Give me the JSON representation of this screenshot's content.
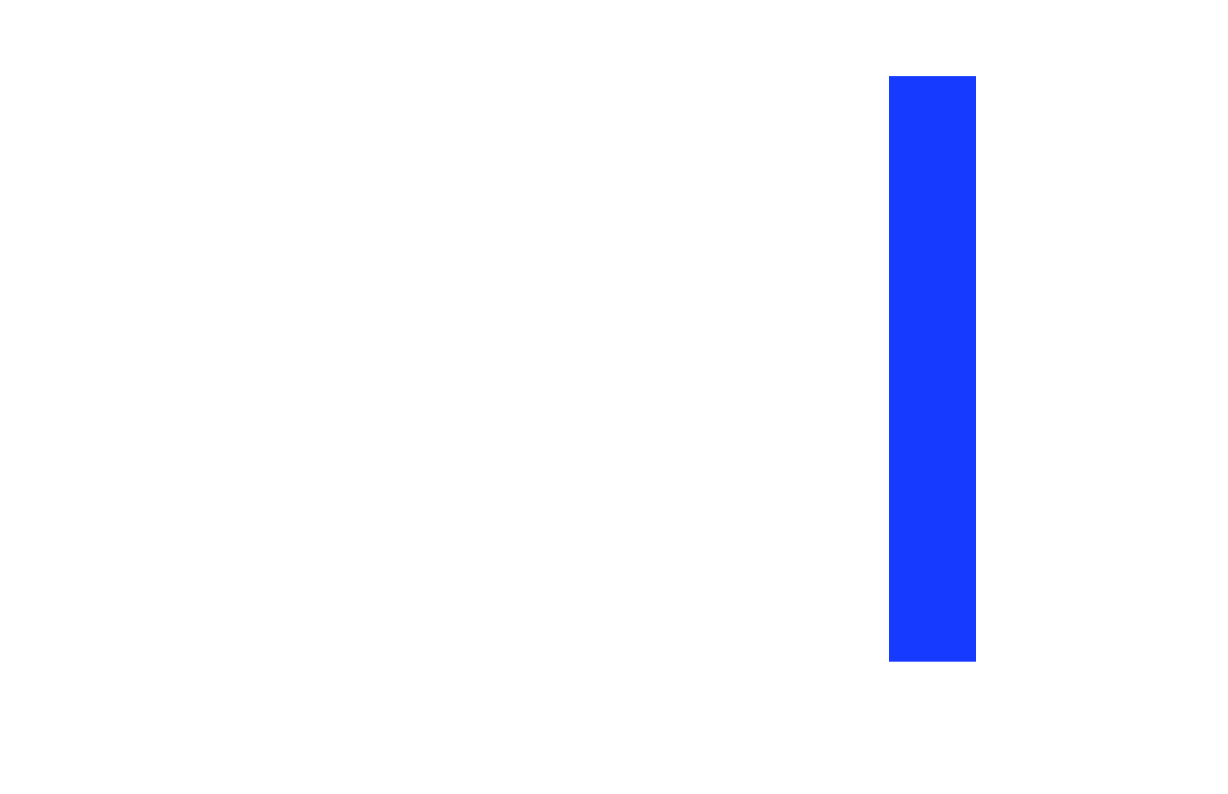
{
  "panel": {
    "color": "#163aff"
  }
}
